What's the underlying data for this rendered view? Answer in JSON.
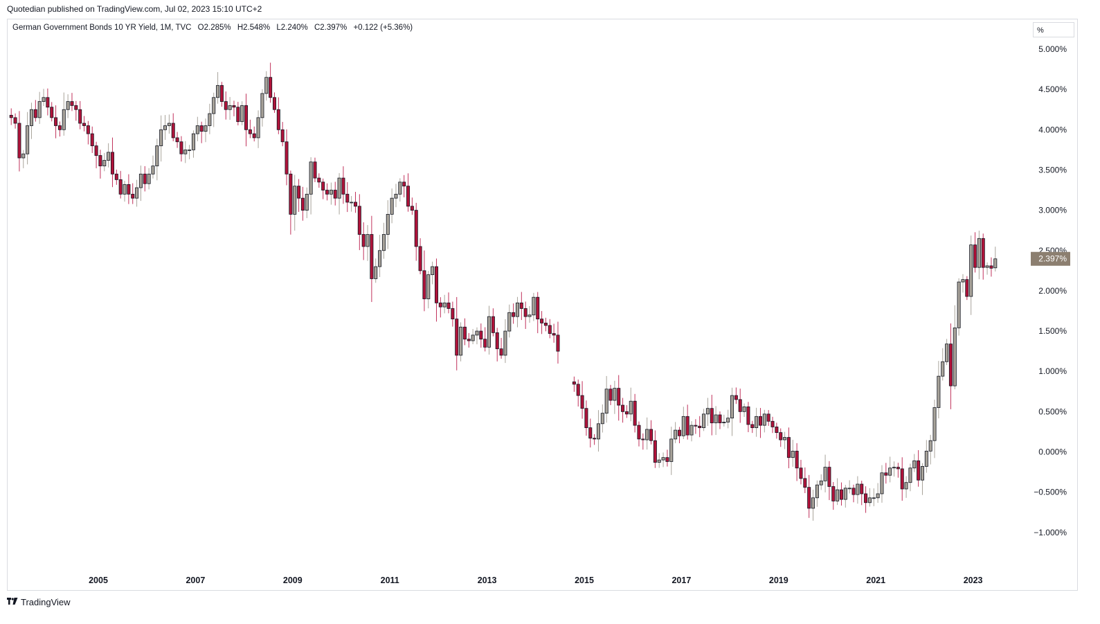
{
  "header": {
    "published": "Quotedian published on TradingView.com, Jul 02, 2023 15:10 UTC+2"
  },
  "legend": {
    "symbol": "German Government Bonds 10 YR Yield, 1M, TVC",
    "open": "O2.285%",
    "high": "H2.548%",
    "low": "L2.240%",
    "close": "C2.397%",
    "change": "+0.122 (+5.36%)"
  },
  "price_scale": {
    "unit": "%",
    "last_label": "2.397%"
  },
  "footer": {
    "brand": "TradingView",
    "logo": "tradingview-logo-icon"
  },
  "colors": {
    "up": "#a8a39a",
    "down": "#b0133a",
    "wick_up": "#a8a39a",
    "wick_down": "#c0305a",
    "last_badge": "#8c7f70"
  },
  "chart_data": {
    "type": "candlestick",
    "frequency": "monthly",
    "ylabel": "%",
    "ylim": [
      -1.3,
      5.15
    ],
    "xlim": [
      "2003-02",
      "2024-07"
    ],
    "y_ticks": [
      "5.000%",
      "4.500%",
      "4.000%",
      "3.500%",
      "3.000%",
      "2.500%",
      "2.000%",
      "1.500%",
      "1.000%",
      "0.500%",
      "0.000%",
      "−0.500%",
      "−1.000%"
    ],
    "y_tick_values": [
      5,
      4.5,
      4,
      3.5,
      3,
      2.5,
      2,
      1.5,
      1,
      0.5,
      0,
      -0.5,
      -1
    ],
    "x_ticks": [
      "2005",
      "2007",
      "2009",
      "2011",
      "2013",
      "2015",
      "2017",
      "2019",
      "2021",
      "2023"
    ],
    "x_tick_times": [
      2005,
      2007,
      2009,
      2011,
      2013,
      2015,
      2017,
      2019,
      2021,
      2023
    ],
    "gap": [
      "2014-07",
      "2014-10"
    ],
    "monthly_close": [
      {
        "from": "2003-03",
        "values": [
          4.15,
          4.08,
          3.65,
          3.7,
          4.05,
          4.25,
          4.15,
          4.35,
          4.4,
          4.28
        ]
      },
      {
        "from": "2004-01",
        "values": [
          4.15,
          4.05,
          4.0,
          4.25,
          4.35,
          4.3,
          4.25,
          4.08,
          4.05,
          3.95,
          3.8,
          3.68
        ]
      },
      {
        "from": "2005-01",
        "values": [
          3.55,
          3.62,
          3.72,
          3.45,
          3.38,
          3.2,
          3.32,
          3.2,
          3.15,
          3.28,
          3.45,
          3.33
        ]
      },
      {
        "from": "2006-01",
        "values": [
          3.45,
          3.55,
          3.8,
          4.0,
          4.05,
          4.08,
          3.9,
          3.85,
          3.7,
          3.75,
          3.75,
          3.95
        ]
      },
      {
        "from": "2007-01",
        "values": [
          4.05,
          3.98,
          4.05,
          4.2,
          4.4,
          4.55,
          4.35,
          4.25,
          4.3,
          4.28,
          4.1,
          4.3
        ]
      },
      {
        "from": "2008-01",
        "values": [
          4.0,
          3.95,
          3.9,
          4.15,
          4.45,
          4.65,
          4.4,
          4.25,
          4.0,
          3.85,
          3.45,
          2.95
        ]
      },
      {
        "from": "2009-01",
        "values": [
          3.3,
          3.15,
          3.0,
          3.2,
          3.6,
          3.4,
          3.35,
          3.25,
          3.2,
          3.25,
          3.15,
          3.4
        ]
      },
      {
        "from": "2010-01",
        "values": [
          3.2,
          3.1,
          3.1,
          3.05,
          2.7,
          2.55,
          2.7,
          2.15,
          2.3,
          2.5,
          2.7,
          2.95
        ]
      },
      {
        "from": "2011-01",
        "values": [
          3.15,
          3.2,
          3.35,
          3.3,
          3.05,
          3.0,
          2.55,
          2.25,
          1.9,
          2.2,
          2.3,
          1.85
        ]
      },
      {
        "from": "2012-01",
        "values": [
          1.8,
          1.85,
          1.78,
          1.65,
          1.2,
          1.55,
          1.4,
          1.38,
          1.45,
          1.5,
          1.4,
          1.3
        ]
      },
      {
        "from": "2013-01",
        "values": [
          1.68,
          1.48,
          1.28,
          1.2,
          1.5,
          1.73,
          1.68,
          1.85,
          1.78,
          1.68,
          1.7,
          1.92
        ]
      },
      {
        "from": "2014-01",
        "values": [
          1.65,
          1.6,
          1.57,
          1.47,
          1.45,
          1.25
        ]
      },
      {
        "from": "2014-10",
        "values": [
          0.84,
          0.7,
          0.54
        ]
      },
      {
        "from": "2015-01",
        "values": [
          0.3,
          0.17,
          0.16,
          0.35,
          0.48,
          0.78,
          0.64,
          0.79,
          0.58,
          0.5,
          0.47,
          0.63
        ]
      },
      {
        "from": "2016-01",
        "values": [
          0.33,
          0.16,
          0.15,
          0.28,
          0.14,
          -0.13,
          -0.1,
          -0.07,
          -0.12,
          0.16,
          0.27,
          0.2
        ]
      },
      {
        "from": "2017-01",
        "values": [
          0.44,
          0.21,
          0.33,
          0.32,
          0.3,
          0.47,
          0.54,
          0.36,
          0.46,
          0.36,
          0.37,
          0.42
        ]
      },
      {
        "from": "2018-01",
        "values": [
          0.7,
          0.65,
          0.5,
          0.56,
          0.34,
          0.3,
          0.44,
          0.33,
          0.47,
          0.38,
          0.31,
          0.24
        ]
      },
      {
        "from": "2019-01",
        "values": [
          0.15,
          0.18,
          -0.07,
          0.01,
          -0.2,
          -0.33,
          -0.44,
          -0.7,
          -0.57,
          -0.41,
          -0.36,
          -0.19
        ]
      },
      {
        "from": "2020-01",
        "values": [
          -0.43,
          -0.61,
          -0.47,
          -0.59,
          -0.45,
          -0.45,
          -0.53,
          -0.4,
          -0.52,
          -0.63,
          -0.57,
          -0.57
        ]
      },
      {
        "from": "2021-01",
        "values": [
          -0.52,
          -0.26,
          -0.29,
          -0.2,
          -0.19,
          -0.21,
          -0.46,
          -0.38,
          -0.2,
          -0.11,
          -0.35,
          -0.18
        ]
      },
      {
        "from": "2022-01",
        "values": [
          0.01,
          0.14,
          0.55,
          0.94,
          1.12,
          1.34,
          0.82,
          1.54,
          2.11,
          2.14,
          1.93,
          2.57
        ]
      },
      {
        "from": "2023-01",
        "values": [
          2.29,
          2.65,
          2.29,
          2.31,
          2.28,
          2.4
        ]
      }
    ],
    "last": {
      "date": "2023-06",
      "open": 2.285,
      "high": 2.548,
      "low": 2.24,
      "close": 2.397
    }
  }
}
